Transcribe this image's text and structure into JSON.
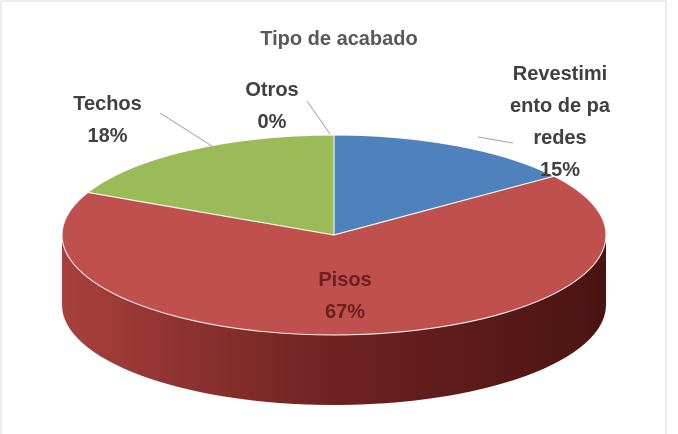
{
  "chart_data": {
    "type": "pie",
    "title": "Tipo de acabado",
    "categories": [
      "Revestimiento de paredes",
      "Pisos",
      "Techos",
      "Otros"
    ],
    "values": [
      15,
      67,
      18,
      0
    ],
    "value_labels": [
      "15%",
      "67%",
      "18%",
      "0%"
    ],
    "colors": [
      "#4f81bd",
      "#c0504d",
      "#9bbb59",
      "#8064a2"
    ]
  }
}
